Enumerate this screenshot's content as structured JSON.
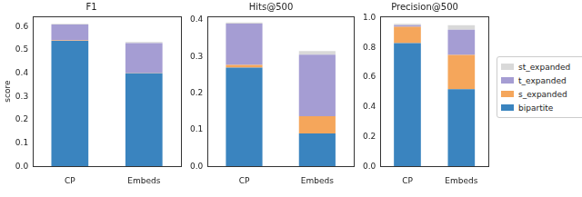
{
  "chart_data": [
    {
      "type": "bar",
      "title": "F1",
      "y_label": "score",
      "stacked": true,
      "grid": false,
      "categories": [
        "CP",
        "Embeds"
      ],
      "ylim": [
        0,
        0.645
      ],
      "yticks": [
        {
          "value": 0,
          "label": "0.0"
        },
        0.1,
        0.2,
        0.3,
        0.4,
        0.5,
        0.6
      ],
      "series": [
        {
          "name": "bipartite",
          "color": "#3a84bf",
          "values": [
            0.54,
            0.4
          ]
        },
        {
          "name": "s_expanded",
          "color": "#f5a65b",
          "values": [
            0.002,
            0.001
          ]
        },
        {
          "name": "t_expanded",
          "color": "#a59dd3",
          "values": [
            0.068,
            0.129
          ]
        },
        {
          "name": "st_expanded",
          "color": "#d9d9d9",
          "values": [
            0.003,
            0.005
          ]
        }
      ]
    },
    {
      "type": "bar",
      "title": "Hits@500",
      "stacked": true,
      "grid": false,
      "categories": [
        "CP",
        "Embeds"
      ],
      "ylim": [
        0,
        0.41
      ],
      "yticks": [
        {
          "value": 0,
          "label": "0.0"
        },
        0.1,
        0.2,
        0.3,
        0.4
      ],
      "series": [
        {
          "name": "bipartite",
          "color": "#3a84bf",
          "values": [
            0.27,
            0.09
          ]
        },
        {
          "name": "s_expanded",
          "color": "#f5a65b",
          "values": [
            0.007,
            0.047
          ]
        },
        {
          "name": "t_expanded",
          "color": "#a59dd3",
          "values": [
            0.113,
            0.168
          ]
        },
        {
          "name": "st_expanded",
          "color": "#d9d9d9",
          "values": [
            0.003,
            0.01
          ]
        }
      ]
    },
    {
      "type": "bar",
      "title": "Precision@500",
      "stacked": true,
      "grid": false,
      "legend": "right",
      "categories": [
        "CP",
        "Embeds"
      ],
      "ylim": [
        0,
        1.01
      ],
      "yticks": [
        {
          "value": 0,
          "label": "0.0"
        },
        0.2,
        0.4,
        0.6,
        0.8,
        {
          "value": 1,
          "label": "1.0"
        }
      ],
      "series": [
        {
          "name": "bipartite",
          "color": "#3a84bf",
          "values": [
            0.83,
            0.52
          ]
        },
        {
          "name": "s_expanded",
          "color": "#f5a65b",
          "values": [
            0.11,
            0.23
          ]
        },
        {
          "name": "t_expanded",
          "color": "#a59dd3",
          "values": [
            0.01,
            0.17
          ]
        },
        {
          "name": "st_expanded",
          "color": "#d9d9d9",
          "values": [
            0.01,
            0.03
          ]
        }
      ]
    }
  ]
}
